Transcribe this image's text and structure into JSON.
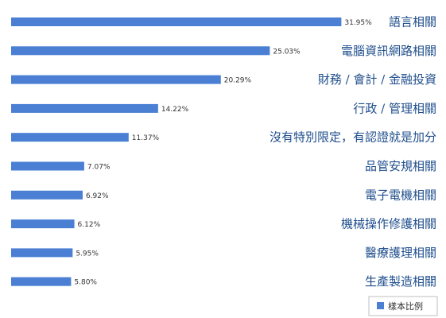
{
  "chart_data": {
    "type": "bar",
    "orientation": "horizontal",
    "categories": [
      "語言相關",
      "電腦資訊網路相關",
      "財務 / 會計 / 金融投資",
      "行政 / 管理相關",
      "沒有特別限定，有認證就是加分",
      "品管安規相關",
      "電子電機相關",
      "機械操作修護相關",
      "醫療護理相關",
      "生產製造相關"
    ],
    "series": [
      {
        "name": "樣本比例",
        "values": [
          31.95,
          25.03,
          20.29,
          14.22,
          11.37,
          7.07,
          6.92,
          6.12,
          5.95,
          5.8
        ],
        "value_labels": [
          "31.95%",
          "25.03%",
          "20.29%",
          "14.22%",
          "11.37%",
          "7.07%",
          "6.92%",
          "6.12%",
          "5.95%",
          "5.80%"
        ]
      }
    ],
    "xlim": [
      0,
      40
    ],
    "grid": false,
    "legend_position": "bottom-right",
    "colors": {
      "bar": "#4a7fd4",
      "label": "#1f4e8c"
    }
  }
}
